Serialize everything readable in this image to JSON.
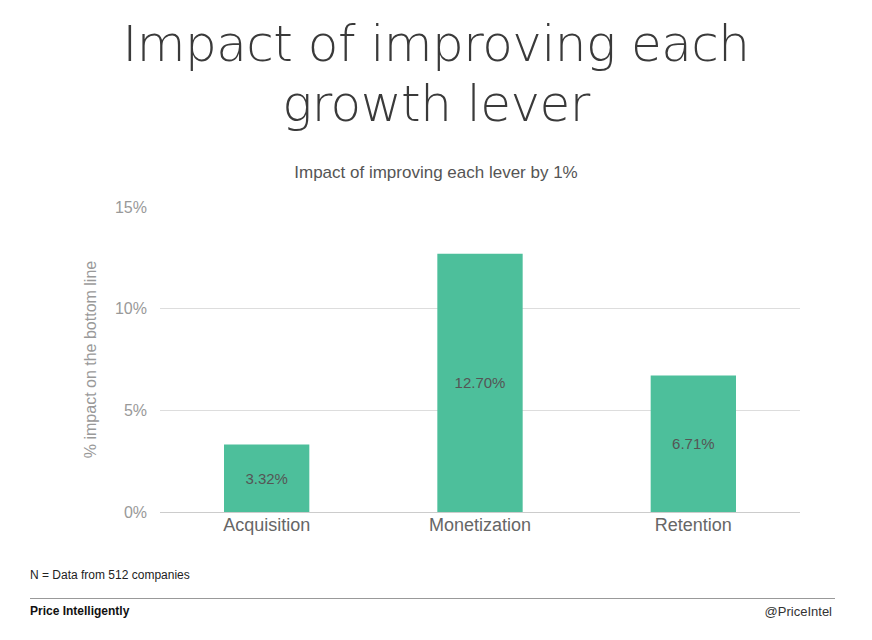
{
  "chart_data": {
    "type": "bar",
    "title": "Impact of improving each growth lever",
    "subtitle": "Impact of improving each lever by 1%",
    "y_label": "% impact on the bottom line",
    "categories": [
      "Acquisition",
      "Monetization",
      "Retention"
    ],
    "values": [
      3.32,
      12.7,
      6.71
    ],
    "value_labels": [
      "3.32%",
      "12.70%",
      "6.71%"
    ],
    "data_labels": true,
    "color": "#4dbf9b",
    "ylim": [
      0,
      15
    ],
    "yticks": [
      {
        "value": 0,
        "label": "0%"
      },
      {
        "value": 5,
        "label": "5%"
      },
      {
        "value": 10,
        "label": "10%"
      },
      {
        "value": 15,
        "label": "15%"
      }
    ],
    "grid": true,
    "annotations": [
      "N = Data from 512 companies",
      "Price Intelligently",
      "@PriceIntel"
    ]
  }
}
